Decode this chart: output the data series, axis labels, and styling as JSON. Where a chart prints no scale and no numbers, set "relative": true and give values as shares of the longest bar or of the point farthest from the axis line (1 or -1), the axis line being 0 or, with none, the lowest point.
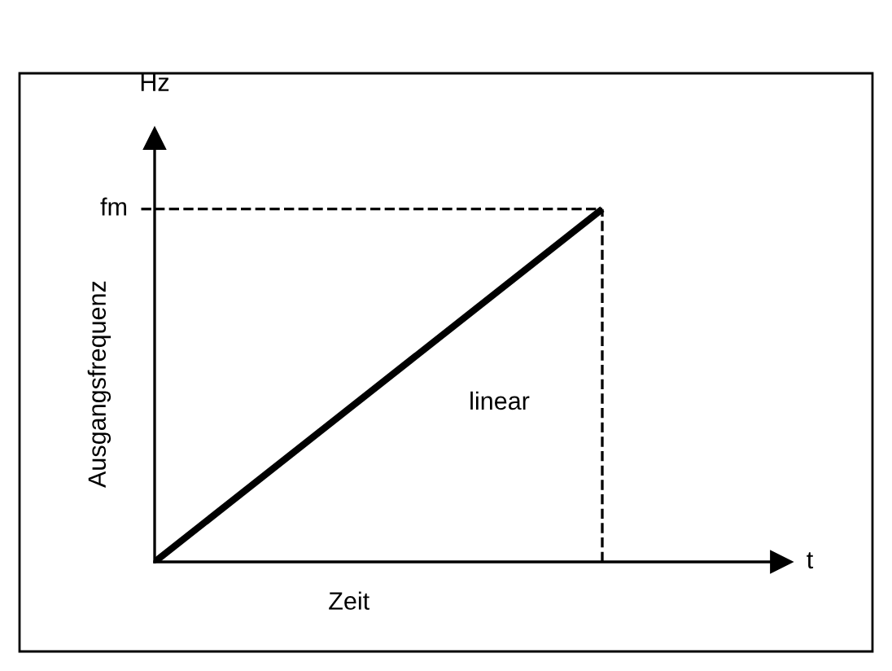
{
  "chart_data": {
    "type": "line",
    "relative": true,
    "xlabel": "Zeit",
    "ylabel": "Ausgangsfrequenz",
    "annotations": [
      "Hz",
      "t"
    ],
    "categories": [
      null,
      null
    ],
    "series": [
      {
        "name": "linear",
        "color": "#000000",
        "values": [
          0,
          1
        ]
      }
    ],
    "ref_lines": [
      {
        "axis": "y",
        "value": 1,
        "label": "fm",
        "line_style": "dashed",
        "color": "#000000"
      }
    ],
    "marker": "none",
    "line_style": "solid",
    "legend": false
  }
}
